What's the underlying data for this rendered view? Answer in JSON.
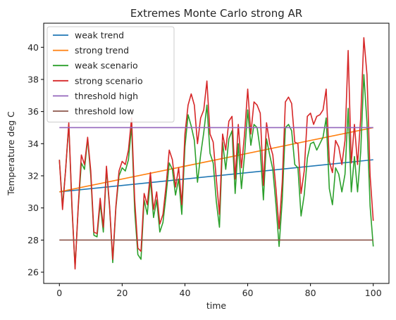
{
  "chart_data": {
    "type": "line",
    "title": "Extremes Monte Carlo strong AR",
    "xlabel": "time",
    "ylabel": "Temperature deg C",
    "xlim": [
      -5,
      105
    ],
    "ylim": [
      25.3,
      41.5
    ],
    "xticks": [
      0,
      20,
      40,
      60,
      80,
      100
    ],
    "yticks": [
      26,
      28,
      30,
      32,
      34,
      36,
      38,
      40
    ],
    "grid": false,
    "legend_position": "top-left",
    "x": [
      0,
      1,
      2,
      3,
      4,
      5,
      6,
      7,
      8,
      9,
      10,
      11,
      12,
      13,
      14,
      15,
      16,
      17,
      18,
      19,
      20,
      21,
      22,
      23,
      24,
      25,
      26,
      27,
      28,
      29,
      30,
      31,
      32,
      33,
      34,
      35,
      36,
      37,
      38,
      39,
      40,
      41,
      42,
      43,
      44,
      45,
      46,
      47,
      48,
      49,
      50,
      51,
      52,
      53,
      54,
      55,
      56,
      57,
      58,
      59,
      60,
      61,
      62,
      63,
      64,
      65,
      66,
      67,
      68,
      69,
      70,
      71,
      72,
      73,
      74,
      75,
      76,
      77,
      78,
      79,
      80,
      81,
      82,
      83,
      84,
      85,
      86,
      87,
      88,
      89,
      90,
      91,
      92,
      93,
      94,
      95,
      96,
      97,
      98,
      99,
      100
    ],
    "series": [
      {
        "name": "weak trend",
        "color": "#1f77b4",
        "x": [
          0,
          100
        ],
        "values": [
          31.0,
          33.0
        ]
      },
      {
        "name": "strong trend",
        "color": "#ff7f0e",
        "x": [
          0,
          100
        ],
        "values": [
          31.0,
          35.0
        ]
      },
      {
        "name": "weak scenario",
        "color": "#2ca02c",
        "values": [
          33.0,
          30.1,
          32.4,
          35.2,
          30.0,
          26.3,
          30.0,
          32.8,
          32.4,
          34.3,
          32.0,
          28.3,
          28.2,
          30.3,
          28.5,
          32.4,
          30.0,
          26.6,
          30.0,
          32.0,
          32.5,
          32.3,
          33.0,
          35.1,
          29.8,
          27.1,
          26.8,
          30.5,
          29.6,
          31.8,
          29.4,
          30.5,
          28.5,
          29.1,
          30.8,
          32.8,
          32.4,
          30.8,
          31.8,
          29.6,
          33.8,
          35.8,
          35.1,
          34.2,
          31.6,
          33.3,
          34.7,
          36.4,
          33.4,
          32.8,
          30.4,
          28.8,
          34.1,
          32.4,
          34.3,
          34.8,
          30.9,
          34.0,
          31.2,
          33.3,
          36.1,
          33.9,
          35.2,
          35.0,
          33.6,
          30.5,
          34.3,
          33.3,
          32.4,
          30.2,
          27.6,
          30.5,
          35.0,
          35.2,
          34.8,
          32.7,
          32.5,
          29.5,
          30.8,
          33.1,
          34.0,
          34.1,
          33.6,
          34.0,
          34.4,
          35.6,
          31.2,
          30.2,
          32.5,
          32.1,
          31.0,
          32.1,
          36.2,
          31.0,
          33.2,
          31.0,
          33.5,
          38.3,
          35.3,
          30.1,
          27.6
        ]
      },
      {
        "name": "strong scenario",
        "color": "#d62728",
        "values": [
          33.0,
          29.9,
          32.4,
          35.3,
          30.2,
          26.2,
          30.1,
          33.3,
          32.7,
          34.4,
          32.3,
          28.5,
          28.4,
          30.6,
          28.8,
          32.6,
          30.1,
          26.8,
          30.1,
          32.3,
          32.9,
          32.7,
          33.6,
          35.6,
          30.5,
          27.5,
          27.3,
          30.9,
          30.2,
          32.2,
          29.9,
          31.0,
          29.0,
          29.6,
          31.4,
          33.6,
          33.0,
          31.3,
          32.5,
          30.2,
          34.6,
          36.4,
          37.1,
          36.4,
          34.0,
          35.6,
          36.1,
          37.9,
          34.6,
          34.1,
          31.8,
          29.6,
          34.6,
          33.6,
          35.4,
          35.7,
          31.8,
          35.2,
          32.5,
          34.6,
          37.4,
          34.6,
          36.6,
          36.4,
          35.9,
          31.4,
          35.3,
          34.0,
          33.3,
          31.2,
          28.7,
          31.6,
          36.6,
          36.9,
          36.5,
          34.1,
          34.0,
          30.9,
          32.3,
          35.7,
          35.9,
          35.2,
          35.7,
          35.8,
          36.1,
          37.4,
          32.9,
          32.2,
          34.2,
          33.8,
          32.7,
          34.2,
          39.8,
          32.8,
          35.2,
          32.7,
          35.6,
          40.6,
          38.3,
          32.0,
          29.2
        ]
      },
      {
        "name": "threshold high",
        "color": "#9467bd",
        "x": [
          0,
          100
        ],
        "values": [
          35.0,
          35.0
        ]
      },
      {
        "name": "threshold low",
        "color": "#8c564b",
        "x": [
          0,
          100
        ],
        "values": [
          28.0,
          28.0
        ]
      }
    ]
  }
}
